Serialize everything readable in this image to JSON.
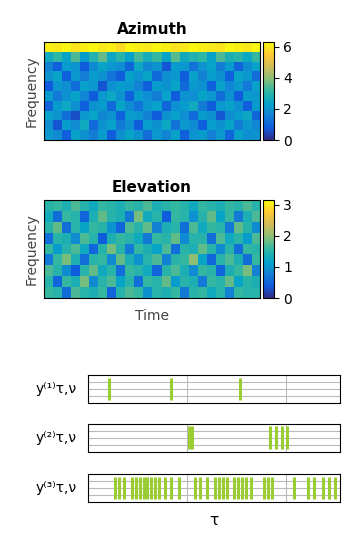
{
  "chart_data": [
    {
      "type": "heatmap",
      "title": "Azimuth",
      "ylabel": "Frequency",
      "tick_labels": false,
      "colorbar": {
        "range": [
          0,
          6.283
        ],
        "ticks": [
          0,
          2,
          4,
          6
        ]
      },
      "cells": [
        [
          2.1,
          1.8,
          0.9,
          2.3,
          2.0,
          1.5,
          2.2,
          0.8,
          1.9,
          2.4,
          2.0,
          1.2,
          2.1,
          1.7,
          2.3,
          0.9,
          2.0,
          2.2,
          1.6,
          2.1,
          1.0,
          2.3,
          1.9,
          2.0
        ],
        [
          1.9,
          0.7,
          2.2,
          1.8,
          2.6,
          1.1,
          2.0,
          2.3,
          1.4,
          1.9,
          0.8,
          2.2,
          2.0,
          2.5,
          1.3,
          2.1,
          1.8,
          0.9,
          2.2,
          2.0,
          2.4,
          1.5,
          2.1,
          1.7
        ],
        [
          2.3,
          2.0,
          1.2,
          0.6,
          2.1,
          2.4,
          1.7,
          2.0,
          0.9,
          2.2,
          2.1,
          1.6,
          0.8,
          2.0,
          2.3,
          1.9,
          1.1,
          2.2,
          2.0,
          0.7,
          1.8,
          2.2,
          2.5,
          1.0
        ],
        [
          1.0,
          2.2,
          2.5,
          1.9,
          0.9,
          2.0,
          2.2,
          1.1,
          2.4,
          1.8,
          1.3,
          2.1,
          2.3,
          1.0,
          1.9,
          2.2,
          2.6,
          1.5,
          0.8,
          2.1,
          2.3,
          1.9,
          0.9,
          2.2
        ],
        [
          2.2,
          1.4,
          2.0,
          2.3,
          1.7,
          0.8,
          2.1,
          2.5,
          2.0,
          0.9,
          2.2,
          1.9,
          1.5,
          2.3,
          0.8,
          2.0,
          1.9,
          2.4,
          2.1,
          1.2,
          2.0,
          0.8,
          2.2,
          2.1
        ],
        [
          0.8,
          2.1,
          1.9,
          1.2,
          2.3,
          2.1,
          0.7,
          1.9,
          2.2,
          2.1,
          1.6,
          0.9,
          2.2,
          2.0,
          2.4,
          1.1,
          2.1,
          2.0,
          0.9,
          2.3,
          1.7,
          2.1,
          1.4,
          2.3
        ],
        [
          2.0,
          2.4,
          0.9,
          2.1,
          1.5,
          2.2,
          2.0,
          1.3,
          0.8,
          2.3,
          2.0,
          2.4,
          1.1,
          1.9,
          2.1,
          0.8,
          2.3,
          1.6,
          2.2,
          2.0,
          0.9,
          2.4,
          2.1,
          1.2
        ],
        [
          1.6,
          0.9,
          2.2,
          2.0,
          0.8,
          1.8,
          2.4,
          2.1,
          1.9,
          1.0,
          2.5,
          1.7,
          2.0,
          0.7,
          2.2,
          2.1,
          1.3,
          2.0,
          2.4,
          1.5,
          2.2,
          1.0,
          1.8,
          2.3
        ],
        [
          2.6,
          3.1,
          2.4,
          3.4,
          2.2,
          2.9,
          3.6,
          2.5,
          3.0,
          2.3,
          3.3,
          2.7,
          3.2,
          2.4,
          3.5,
          2.6,
          2.9,
          3.1,
          2.3,
          3.4,
          2.8,
          3.0,
          2.5,
          3.2
        ],
        [
          6.1,
          6.0,
          6.2,
          5.9,
          6.1,
          6.2,
          6.0,
          6.1,
          5.8,
          6.2,
          6.1,
          6.0,
          6.2,
          6.1,
          5.9,
          6.0,
          6.2,
          6.1,
          6.0,
          5.9,
          6.2,
          6.1,
          6.0,
          6.2
        ]
      ]
    },
    {
      "type": "heatmap",
      "title": "Elevation",
      "ylabel": "Frequency",
      "xlabel": "Time",
      "tick_labels": false,
      "colorbar": {
        "range": [
          0,
          3.1416
        ],
        "ticks": [
          0,
          1,
          2,
          3
        ]
      },
      "cells": [
        [
          1.6,
          1.5,
          0.6,
          1.7,
          1.5,
          1.4,
          1.6,
          0.5,
          1.5,
          1.7,
          1.6,
          1.0,
          1.5,
          1.4,
          1.6,
          0.7,
          1.5,
          1.6,
          1.3,
          1.5,
          0.8,
          1.6,
          1.5,
          1.5
        ],
        [
          1.5,
          0.5,
          1.6,
          1.4,
          1.9,
          0.9,
          1.5,
          1.7,
          1.2,
          1.5,
          0.6,
          1.6,
          1.5,
          1.8,
          1.1,
          1.5,
          1.4,
          0.7,
          1.6,
          1.5,
          1.8,
          1.2,
          1.5,
          1.4
        ],
        [
          1.7,
          1.5,
          0.9,
          0.4,
          1.5,
          1.8,
          1.3,
          1.5,
          0.6,
          1.6,
          1.5,
          1.3,
          0.5,
          1.5,
          1.7,
          1.4,
          0.9,
          1.6,
          1.5,
          0.5,
          1.4,
          1.6,
          1.9,
          0.8
        ],
        [
          0.7,
          1.6,
          1.9,
          1.4,
          0.6,
          1.5,
          1.6,
          0.9,
          1.8,
          1.4,
          1.0,
          1.5,
          1.7,
          0.8,
          1.5,
          1.6,
          2.0,
          1.2,
          0.5,
          1.5,
          1.7,
          1.4,
          0.6,
          1.6
        ],
        [
          1.6,
          1.1,
          1.5,
          1.7,
          1.3,
          0.5,
          1.5,
          1.9,
          1.5,
          0.7,
          1.6,
          1.4,
          1.2,
          1.7,
          0.6,
          1.5,
          1.4,
          1.8,
          1.5,
          0.9,
          1.5,
          0.6,
          1.6,
          1.5
        ],
        [
          0.6,
          1.5,
          1.4,
          0.9,
          1.7,
          1.5,
          0.4,
          1.4,
          1.6,
          1.5,
          1.3,
          0.7,
          1.6,
          1.5,
          1.8,
          0.9,
          1.5,
          1.5,
          0.6,
          1.7,
          1.3,
          1.5,
          1.1,
          1.7
        ],
        [
          1.5,
          1.8,
          0.6,
          1.5,
          1.2,
          1.6,
          1.5,
          1.0,
          0.5,
          1.7,
          1.5,
          1.8,
          0.8,
          1.4,
          1.5,
          0.6,
          1.7,
          1.3,
          1.6,
          1.5,
          0.7,
          1.8,
          1.5,
          0.9
        ],
        [
          1.3,
          0.6,
          1.6,
          1.5,
          0.5,
          1.4,
          1.8,
          1.5,
          1.4,
          0.7,
          1.9,
          1.3,
          1.5,
          0.4,
          1.6,
          1.5,
          1.0,
          1.5,
          1.8,
          1.2,
          1.6,
          0.7,
          1.4,
          1.7
        ],
        [
          1.5,
          1.6,
          1.4,
          1.7,
          1.5,
          1.3,
          1.6,
          1.5,
          1.4,
          1.6,
          1.5,
          1.7,
          1.4,
          1.5,
          1.6,
          1.5,
          1.3,
          1.6,
          1.5,
          1.4,
          1.6,
          1.5,
          1.7,
          1.5
        ]
      ]
    },
    {
      "type": "event",
      "ylabel": "y⁽¹⁾τ,ν",
      "color": "#9acd32",
      "grid": true,
      "tick_labels": false,
      "xlim": [
        0,
        2.55
      ],
      "xticks": [
        1,
        2
      ],
      "ylim": [
        0,
        1
      ],
      "yticks": [
        0.25,
        0.5,
        0.75
      ],
      "x": [
        0.21,
        0.84,
        1.54
      ]
    },
    {
      "type": "event",
      "ylabel": "y⁽²⁾τ,ν",
      "color": "#9acd32",
      "grid": true,
      "tick_labels": false,
      "xlim": [
        0,
        2.55
      ],
      "xticks": [
        1,
        2
      ],
      "ylim": [
        0,
        1
      ],
      "yticks": [
        0.25,
        0.5,
        0.75
      ],
      "x": [
        1.02,
        1.05,
        1.84,
        1.9,
        1.96,
        2.01
      ]
    },
    {
      "type": "event",
      "ylabel": "y⁽³⁾τ,ν",
      "xlabel": "τ",
      "color": "#9acd32",
      "grid": true,
      "tick_labels": false,
      "xlim": [
        0,
        2.55
      ],
      "xticks": [
        1,
        2
      ],
      "ylim": [
        0,
        1
      ],
      "yticks": [
        0.25,
        0.5,
        0.75
      ],
      "x": [
        0.27,
        0.31,
        0.36,
        0.44,
        0.48,
        0.52,
        0.56,
        0.6,
        0.64,
        0.68,
        0.72,
        0.78,
        0.84,
        0.92,
        1.08,
        1.13,
        1.2,
        1.28,
        1.32,
        1.36,
        1.4,
        1.48,
        1.52,
        1.56,
        1.6,
        1.65,
        1.78,
        1.82,
        1.86,
        2.08,
        2.22,
        2.28,
        2.38,
        2.44,
        2.5
      ]
    }
  ]
}
